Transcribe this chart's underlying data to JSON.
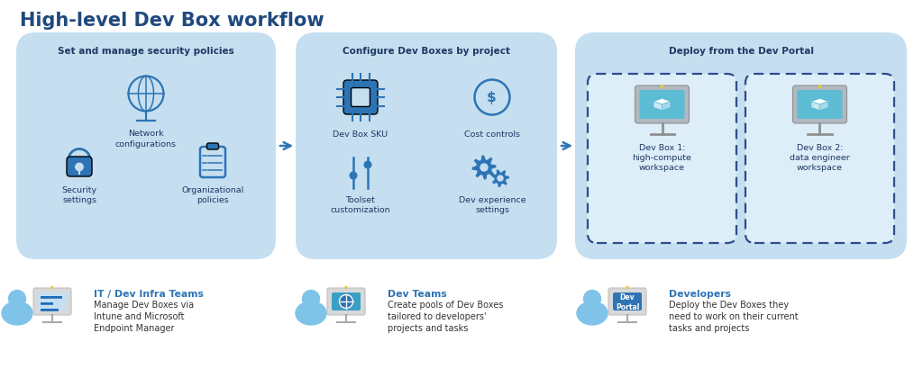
{
  "title": "High-level Dev Box workflow",
  "title_color": "#1f497d",
  "title_fontsize": 15,
  "bg_color": "#ffffff",
  "box_bg": "#c5dff0",
  "arrow_color": "#2e74b5",
  "dashed_box_color": "#2e4d8a",
  "icon_color": "#2e74b5",
  "text_dark": "#1f3864",
  "text_body": "#333333",
  "box1_title": "Set and manage security policies",
  "box2_title": "Configure Dev Boxes by project",
  "box3_title": "Deploy from the Dev Portal",
  "devbox1_label": "Dev Box 1:\nhigh-compute\nworkspace",
  "devbox2_label": "Dev Box 2:\ndata engineer\nworkspace",
  "persona1_title": "IT / Dev Infra Teams",
  "persona1_desc": "Manage Dev Boxes via\nIntune and Microsoft\nEndpoint Manager",
  "persona2_title": "Dev Teams",
  "persona2_desc": "Create pools of Dev Boxes\ntailored to developers'\nprojects and tasks",
  "persona3_title": "Developers",
  "persona3_desc": "Deploy the Dev Boxes they\nneed to work on their current\ntasks and projects"
}
